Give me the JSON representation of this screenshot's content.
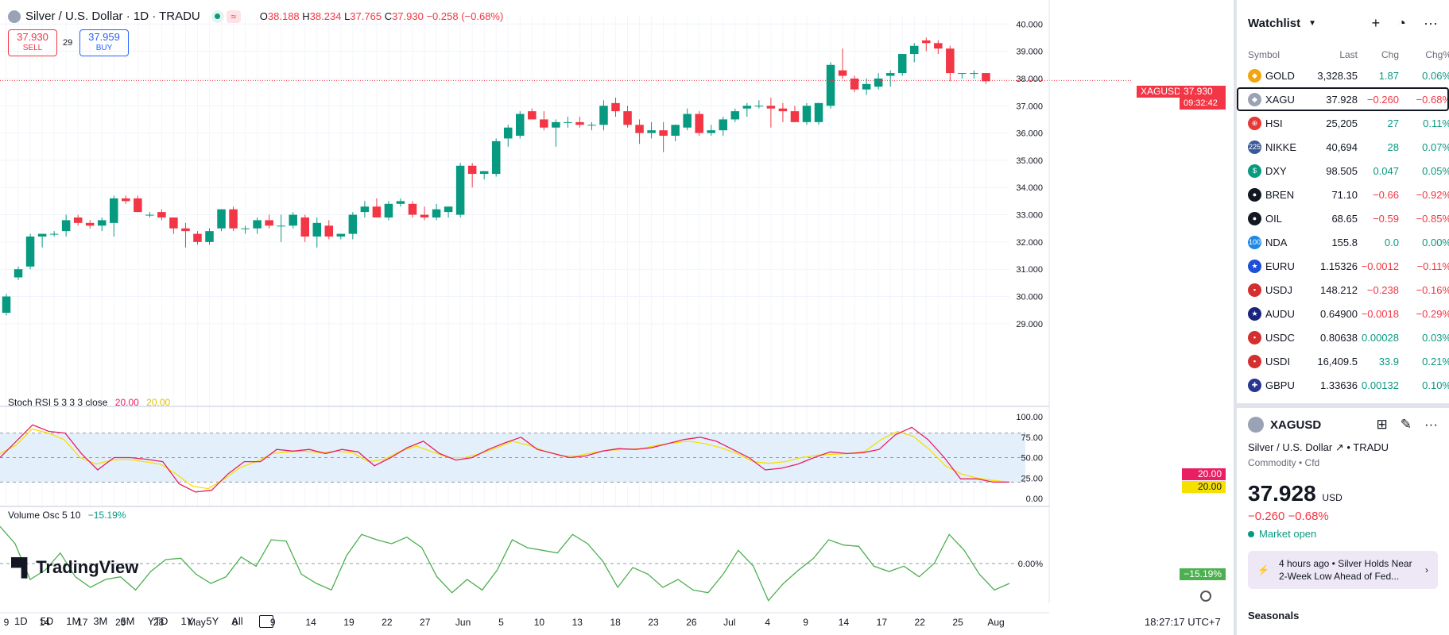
{
  "header": {
    "title": "Silver / U.S. Dollar · 1D · TRADU",
    "open_label": "O",
    "open": "38.188",
    "high_label": "H",
    "high": "38.234",
    "low_label": "L",
    "low": "37.765",
    "close_label": "C",
    "close": "37.930",
    "change": "−0.258 (−0.68%)",
    "status_icon": "≈"
  },
  "trade": {
    "sell_price": "37.930",
    "sell_label": "SELL",
    "spread": "29",
    "buy_price": "37.959",
    "buy_label": "BUY"
  },
  "price_scale": {
    "ticks": [
      "40.000",
      "39.000",
      "38.000",
      "37.000",
      "36.000",
      "35.000",
      "34.000",
      "33.000",
      "32.000",
      "31.000",
      "30.000",
      "29.000"
    ],
    "symbol_tag": "XAGUSD",
    "last_price": "37.930",
    "countdown": "09:32:42"
  },
  "stoch_rsi": {
    "title": "Stoch RSI",
    "params": "5 3 3 3 close",
    "k": "20.00",
    "d": "20.00",
    "scale": [
      "100.00",
      "75.00",
      "50.00",
      "25.00",
      "0.00"
    ],
    "k_tag": "20.00",
    "d_tag": "20.00"
  },
  "volume_osc": {
    "title": "Volume Osc",
    "params": "5 10",
    "value": "−15.19%",
    "zero": "0.00%",
    "tag": "−15.19%"
  },
  "time_axis": [
    "9",
    "14",
    "17",
    "23",
    "28",
    "May",
    "6",
    "9",
    "14",
    "19",
    "22",
    "27",
    "Jun",
    "5",
    "10",
    "13",
    "18",
    "23",
    "26",
    "Jul",
    "4",
    "9",
    "14",
    "17",
    "22",
    "25",
    "Aug"
  ],
  "logo": "TradingView",
  "ranges": [
    "1D",
    "5D",
    "1M",
    "3M",
    "6M",
    "YTD",
    "1Y",
    "5Y",
    "All"
  ],
  "clock": "18:27:17 UTC+7",
  "chart_data": {
    "type": "candlestick",
    "ohlc": [
      [
        29.4,
        30.1,
        29.3,
        30.0
      ],
      [
        30.7,
        31.1,
        30.6,
        31.0
      ],
      [
        31.1,
        32.3,
        31.0,
        32.2
      ],
      [
        32.2,
        32.3,
        31.8,
        32.3
      ],
      [
        32.3,
        32.4,
        32.2,
        32.3
      ],
      [
        32.4,
        33.0,
        32.2,
        32.8
      ],
      [
        32.9,
        33.0,
        32.6,
        32.7
      ],
      [
        32.7,
        32.8,
        32.5,
        32.6
      ],
      [
        32.6,
        32.9,
        32.4,
        32.8
      ],
      [
        32.7,
        33.7,
        32.2,
        33.6
      ],
      [
        33.6,
        33.7,
        33.4,
        33.5
      ],
      [
        33.6,
        33.7,
        33.1,
        33.1
      ],
      [
        33.0,
        33.1,
        32.9,
        33.0
      ],
      [
        33.1,
        33.2,
        32.8,
        32.9
      ],
      [
        32.9,
        32.9,
        32.3,
        32.5
      ],
      [
        32.5,
        32.7,
        31.8,
        32.4
      ],
      [
        32.3,
        32.4,
        31.9,
        32.0
      ],
      [
        32.0,
        32.5,
        31.9,
        32.4
      ],
      [
        32.5,
        33.2,
        32.4,
        33.2
      ],
      [
        33.2,
        33.3,
        32.4,
        32.5
      ],
      [
        32.5,
        32.6,
        32.3,
        32.5
      ],
      [
        32.5,
        32.9,
        32.3,
        32.8
      ],
      [
        32.8,
        33.0,
        32.5,
        32.6
      ],
      [
        32.6,
        33.0,
        32.0,
        32.6
      ],
      [
        32.6,
        33.1,
        32.5,
        33.0
      ],
      [
        32.9,
        33.0,
        32.0,
        32.2
      ],
      [
        32.2,
        32.9,
        31.8,
        32.7
      ],
      [
        32.6,
        32.8,
        32.1,
        32.2
      ],
      [
        32.2,
        32.3,
        32.1,
        32.3
      ],
      [
        32.3,
        33.1,
        32.1,
        33.0
      ],
      [
        33.1,
        33.5,
        32.9,
        33.3
      ],
      [
        33.3,
        33.6,
        32.9,
        32.9
      ],
      [
        32.9,
        33.5,
        32.8,
        33.4
      ],
      [
        33.4,
        33.6,
        33.3,
        33.5
      ],
      [
        33.4,
        33.5,
        32.9,
        33.0
      ],
      [
        33.0,
        33.3,
        32.8,
        32.9
      ],
      [
        32.9,
        33.4,
        32.8,
        33.2
      ],
      [
        33.1,
        33.3,
        32.9,
        33.3
      ],
      [
        33.0,
        34.9,
        32.9,
        34.8
      ],
      [
        34.8,
        34.9,
        34.0,
        34.5
      ],
      [
        34.5,
        34.6,
        34.3,
        34.6
      ],
      [
        34.5,
        35.8,
        34.4,
        35.7
      ],
      [
        35.8,
        36.3,
        35.5,
        36.2
      ],
      [
        35.9,
        36.8,
        35.8,
        36.7
      ],
      [
        36.8,
        36.9,
        36.5,
        36.5
      ],
      [
        36.5,
        36.8,
        36.1,
        36.2
      ],
      [
        36.2,
        36.5,
        35.5,
        36.4
      ],
      [
        36.4,
        36.6,
        36.2,
        36.4
      ],
      [
        36.4,
        36.6,
        36.2,
        36.3
      ],
      [
        36.3,
        36.4,
        36.1,
        36.3
      ],
      [
        36.3,
        37.2,
        36.1,
        37.0
      ],
      [
        37.1,
        37.3,
        36.6,
        36.8
      ],
      [
        36.8,
        37.0,
        36.2,
        36.3
      ],
      [
        36.3,
        36.5,
        35.6,
        36.0
      ],
      [
        36.0,
        36.4,
        35.8,
        36.1
      ],
      [
        36.1,
        36.4,
        35.3,
        35.9
      ],
      [
        35.9,
        36.3,
        35.7,
        36.3
      ],
      [
        36.2,
        36.9,
        36.1,
        36.7
      ],
      [
        36.7,
        36.8,
        35.9,
        36.0
      ],
      [
        36.0,
        36.3,
        35.9,
        36.1
      ],
      [
        36.1,
        36.6,
        35.9,
        36.5
      ],
      [
        36.5,
        36.9,
        36.4,
        36.8
      ],
      [
        36.9,
        37.1,
        36.6,
        37.0
      ],
      [
        37.0,
        37.2,
        36.9,
        37.0
      ],
      [
        37.0,
        37.3,
        36.2,
        36.9
      ],
      [
        36.9,
        37.1,
        36.4,
        36.8
      ],
      [
        36.8,
        37.0,
        36.4,
        36.4
      ],
      [
        36.4,
        37.1,
        36.3,
        37.0
      ],
      [
        36.4,
        37.1,
        36.3,
        37.1
      ],
      [
        37.0,
        38.6,
        36.9,
        38.5
      ],
      [
        38.3,
        39.1,
        38.0,
        38.1
      ],
      [
        38.0,
        38.1,
        37.5,
        37.6
      ],
      [
        37.6,
        38.0,
        37.4,
        37.8
      ],
      [
        37.7,
        38.2,
        37.6,
        38.0
      ],
      [
        38.1,
        38.3,
        37.7,
        38.2
      ],
      [
        38.2,
        38.9,
        38.1,
        38.9
      ],
      [
        38.9,
        39.3,
        38.6,
        39.2
      ],
      [
        39.4,
        39.5,
        39.0,
        39.3
      ],
      [
        39.3,
        39.4,
        38.9,
        39.1
      ],
      [
        39.1,
        39.2,
        37.9,
        38.2
      ],
      [
        38.2,
        38.2,
        38.0,
        38.2
      ],
      [
        38.2,
        38.3,
        38.0,
        38.2
      ],
      [
        38.2,
        38.2,
        37.8,
        37.9
      ]
    ],
    "stoch_k": [
      50,
      70,
      90,
      82,
      80,
      55,
      35,
      50,
      50,
      48,
      45,
      18,
      8,
      10,
      30,
      45,
      45,
      60,
      58,
      60,
      55,
      60,
      57,
      40,
      50,
      62,
      70,
      55,
      47,
      50,
      60,
      68,
      75,
      60,
      55,
      50,
      52,
      58,
      61,
      60,
      62,
      67,
      72,
      75,
      70,
      60,
      50,
      35,
      37,
      42,
      50,
      57,
      55,
      56,
      60,
      78,
      87,
      72,
      50,
      24,
      24,
      20,
      20
    ],
    "stoch_d": [
      55,
      65,
      85,
      80,
      72,
      50,
      42,
      47,
      48,
      45,
      42,
      30,
      15,
      12,
      24,
      38,
      45,
      55,
      57,
      58,
      56,
      58,
      56,
      45,
      48,
      58,
      64,
      57,
      50,
      50,
      55,
      62,
      70,
      65,
      58,
      52,
      52,
      56,
      59,
      60,
      61,
      65,
      68,
      70,
      67,
      62,
      55,
      45,
      43,
      45,
      50,
      53,
      54,
      55,
      58,
      72,
      82,
      76,
      60,
      40,
      30,
      25,
      22,
      20
    ],
    "vol_osc": [
      28,
      15,
      -12,
      -5,
      8,
      -10,
      -18,
      -12,
      -10,
      -20,
      -6,
      3,
      4,
      -8,
      -15,
      -10,
      5,
      -2,
      18,
      17,
      -8,
      -15,
      -20,
      6,
      22,
      18,
      15,
      20,
      12,
      -10,
      -22,
      -12,
      -20,
      -5,
      18,
      12,
      10,
      8,
      22,
      15,
      2,
      -18,
      -3,
      -8,
      -18,
      -12,
      -20,
      -22,
      -8,
      10,
      -2,
      -28,
      -15,
      -5,
      4,
      18,
      14,
      13,
      -2,
      -6,
      -2,
      -10,
      0,
      22,
      10,
      -8,
      -20,
      -15
    ],
    "y_range": [
      28.5,
      40.3
    ],
    "stoch_range": [
      0,
      100
    ],
    "vol_range": [
      -30,
      30
    ]
  },
  "watchlist": {
    "title": "Watchlist",
    "columns": [
      "Symbol",
      "Last",
      "Chg",
      "Chg%"
    ],
    "rows": [
      {
        "symbol": "GOLD",
        "last": "3,328.35",
        "chg": "1.87",
        "chgp": "0.06%",
        "dir": "pos",
        "icon": "gold-icon",
        "icon_text": "◆",
        "icon_color": "#f2a50c"
      },
      {
        "symbol": "XAGU",
        "last": "37.928",
        "chg": "−0.260",
        "chgp": "−0.68%",
        "dir": "neg",
        "icon": "silver-icon",
        "icon_text": "◆",
        "icon_color": "#9aa3b5"
      },
      {
        "symbol": "HSI",
        "last": "25,205",
        "chg": "27",
        "chgp": "0.11%",
        "dir": "pos",
        "icon": "hsi-icon",
        "icon_text": "⊕",
        "icon_color": "#e53935"
      },
      {
        "symbol": "NIKKE",
        "last": "40,694",
        "chg": "28",
        "chgp": "0.07%",
        "dir": "pos",
        "icon": "nikkei-icon",
        "icon_text": "225",
        "icon_color": "#3b5998"
      },
      {
        "symbol": "DXY",
        "last": "98.505",
        "chg": "0.047",
        "chgp": "0.05%",
        "dir": "pos",
        "icon": "dollar-icon",
        "icon_text": "$",
        "icon_color": "#089981"
      },
      {
        "symbol": "BREN",
        "last": "71.10",
        "chg": "−0.66",
        "chgp": "−0.92%",
        "dir": "neg",
        "icon": "oil-drop-icon",
        "icon_text": "●",
        "icon_color": "#131722"
      },
      {
        "symbol": "OIL",
        "last": "68.65",
        "chg": "−0.59",
        "chgp": "−0.85%",
        "dir": "neg",
        "icon": "oil-drop-icon",
        "icon_text": "●",
        "icon_color": "#131722"
      },
      {
        "symbol": "NDA",
        "last": "155.8",
        "chg": "0.0",
        "chgp": "0.00%",
        "dir": "pos",
        "icon": "nasdaq-icon",
        "icon_text": "100",
        "icon_color": "#1e88e5"
      },
      {
        "symbol": "EURU",
        "last": "1.15326",
        "chg": "−0.0012",
        "chgp": "−0.11%",
        "dir": "neg",
        "icon": "eu-flag-icon",
        "icon_text": "★",
        "icon_color": "#1e4fd8"
      },
      {
        "symbol": "USDJ",
        "last": "148.212",
        "chg": "−0.238",
        "chgp": "−0.16%",
        "dir": "neg",
        "icon": "us-flag-icon",
        "icon_text": "▪",
        "icon_color": "#d32f2f"
      },
      {
        "symbol": "AUDU",
        "last": "0.64900",
        "chg": "−0.0018",
        "chgp": "−0.29%",
        "dir": "neg",
        "icon": "au-flag-icon",
        "icon_text": "★",
        "icon_color": "#1a237e"
      },
      {
        "symbol": "USDC",
        "last": "0.80638",
        "chg": "0.00028",
        "chgp": "0.03%",
        "dir": "pos",
        "icon": "us-flag-icon",
        "icon_text": "▪",
        "icon_color": "#d32f2f"
      },
      {
        "symbol": "USDI",
        "last": "16,409.5",
        "chg": "33.9",
        "chgp": "0.21%",
        "dir": "pos",
        "icon": "us-flag-icon",
        "icon_text": "▪",
        "icon_color": "#d32f2f"
      },
      {
        "symbol": "GBPU",
        "last": "1.33636",
        "chg": "0.00132",
        "chgp": "0.10%",
        "dir": "pos",
        "icon": "gb-flag-icon",
        "icon_text": "✚",
        "icon_color": "#283593"
      }
    ]
  },
  "details": {
    "symbol": "XAGUSD",
    "name": "Silver / U.S. Dollar",
    "exchange": "TRADU",
    "type": "Commodity • Cfd",
    "price": "37.928",
    "currency": "USD",
    "change": "−0.260  −0.68%",
    "market_status": "Market open",
    "news_time": "4 hours ago",
    "news_text": "Silver Holds Near 2-Week Low Ahead of Fed...",
    "seasonals": "Seasonals"
  },
  "colors": {
    "up": "#089981",
    "down": "#f23645",
    "stoch_k": "#e91e63",
    "stoch_d": "#f5e000",
    "vol": "#4caf50",
    "band": "#e3f0fc"
  }
}
